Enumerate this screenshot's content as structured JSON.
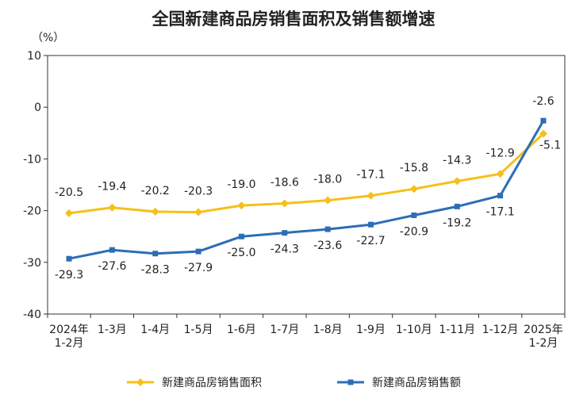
{
  "chart_data": {
    "type": "line",
    "title": "全国新建商品房销售面积及销售额增速",
    "ylabel": "（%）",
    "ylim": [
      -40,
      10
    ],
    "yticks": [
      10,
      0,
      -10,
      -20,
      -30,
      -40
    ],
    "grid": false,
    "legend_position": "bottom",
    "categories": [
      [
        "2024年",
        "1-2月"
      ],
      [
        "1-3月"
      ],
      [
        "1-4月"
      ],
      [
        "1-5月"
      ],
      [
        "1-6月"
      ],
      [
        "1-7月"
      ],
      [
        "1-8月"
      ],
      [
        "1-9月"
      ],
      [
        "1-10月"
      ],
      [
        "1-11月"
      ],
      [
        "1-12月"
      ],
      [
        "2025年",
        "1-2月"
      ]
    ],
    "series": [
      {
        "name": "新建商品房销售面积",
        "color": "#F5C018",
        "marker": "diamond",
        "values": [
          -20.5,
          -19.4,
          -20.2,
          -20.3,
          -19.0,
          -18.6,
          -18.0,
          -17.1,
          -15.8,
          -14.3,
          -12.9,
          -5.1
        ],
        "labels": [
          "-20.5",
          "-19.4",
          "-20.2",
          "-20.3",
          "-19.0",
          "-18.6",
          "-18.0",
          "-17.1",
          "-15.8",
          "-14.3",
          "-12.9",
          "-5.1"
        ]
      },
      {
        "name": "新建商品房销售额",
        "color": "#2D6DB5",
        "marker": "square",
        "values": [
          -29.3,
          -27.6,
          -28.3,
          -27.9,
          -25.0,
          -24.3,
          -23.6,
          -22.7,
          -20.9,
          -19.2,
          -17.1,
          -2.6
        ],
        "labels": [
          "-29.3",
          "-27.6",
          "-28.3",
          "-27.9",
          "-25.0",
          "-24.3",
          "-23.6",
          "-22.7",
          "-20.9",
          "-19.2",
          "-17.1",
          "-2.6"
        ]
      }
    ]
  }
}
